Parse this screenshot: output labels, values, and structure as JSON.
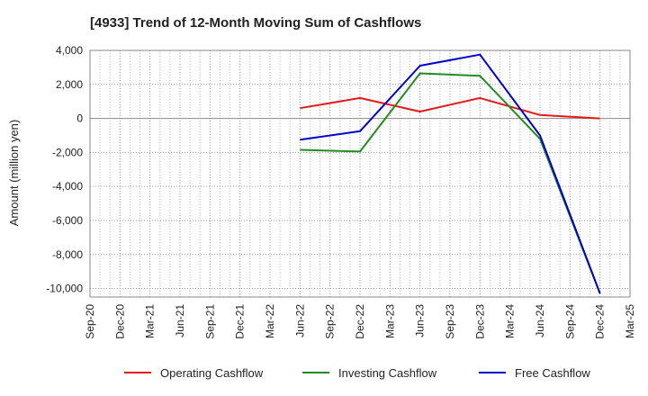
{
  "chart_data": {
    "type": "line",
    "title": "[4933]  Trend of 12-Month Moving Sum of Cashflows",
    "xlabel": "",
    "ylabel": "Amount (million yen)",
    "ylim": [
      -10500,
      4000
    ],
    "yticks": [
      4000,
      2000,
      0,
      -2000,
      -4000,
      -6000,
      -8000,
      -10000
    ],
    "ytick_labels": [
      "4,000",
      "2,000",
      "0",
      "-2,000",
      "-4,000",
      "-6,000",
      "-8,000",
      "-10,000"
    ],
    "categories": [
      "Sep-20",
      "Dec-20",
      "Mar-21",
      "Jun-21",
      "Sep-21",
      "Dec-21",
      "Mar-22",
      "Jun-22",
      "Sep-22",
      "Dec-22",
      "Mar-23",
      "Jun-23",
      "Sep-23",
      "Dec-23",
      "Mar-24",
      "Jun-24",
      "Sep-24",
      "Dec-24",
      "Mar-25"
    ],
    "grid": true,
    "legend_position": "bottom",
    "series": [
      {
        "name": "Operating Cashflow",
        "color": "#e31a1c",
        "values": [
          null,
          null,
          null,
          null,
          null,
          null,
          null,
          600,
          null,
          1200,
          null,
          400,
          null,
          1200,
          null,
          200,
          null,
          0,
          null
        ]
      },
      {
        "name": "Investing Cashflow",
        "color": "#228b22",
        "values": [
          null,
          null,
          null,
          null,
          null,
          null,
          null,
          -1850,
          null,
          -1950,
          null,
          2650,
          null,
          2500,
          null,
          -1200,
          null,
          -10300,
          null
        ]
      },
      {
        "name": "Free Cashflow",
        "color": "#0000cd",
        "values": [
          null,
          null,
          null,
          null,
          null,
          null,
          null,
          -1250,
          null,
          -750,
          null,
          3100,
          null,
          3750,
          null,
          -1000,
          null,
          -10300,
          null
        ]
      }
    ]
  }
}
